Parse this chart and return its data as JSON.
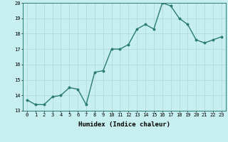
{
  "x": [
    0,
    1,
    2,
    3,
    4,
    5,
    6,
    7,
    8,
    9,
    10,
    11,
    12,
    13,
    14,
    15,
    16,
    17,
    18,
    19,
    20,
    21,
    22,
    23
  ],
  "y": [
    13.7,
    13.4,
    13.4,
    13.9,
    14.0,
    14.5,
    14.4,
    13.4,
    15.5,
    15.6,
    17.0,
    17.0,
    17.3,
    18.3,
    18.6,
    18.3,
    20.0,
    19.8,
    19.0,
    18.6,
    17.6,
    17.4,
    17.6,
    17.8
  ],
  "line_color": "#2a7d6e",
  "marker": "o",
  "marker_size": 1.8,
  "bg_color": "#c8efef",
  "grid_color": "#b0d8d8",
  "xlabel": "Humidex (Indice chaleur)",
  "ylim": [
    13,
    20
  ],
  "xlim_min": -0.5,
  "xlim_max": 23.5,
  "yticks": [
    13,
    14,
    15,
    16,
    17,
    18,
    19,
    20
  ],
  "xticks": [
    0,
    1,
    2,
    3,
    4,
    5,
    6,
    7,
    8,
    9,
    10,
    11,
    12,
    13,
    14,
    15,
    16,
    17,
    18,
    19,
    20,
    21,
    22,
    23
  ],
  "tick_fontsize": 5.0,
  "xlabel_fontsize": 6.5,
  "line_width": 1.0
}
